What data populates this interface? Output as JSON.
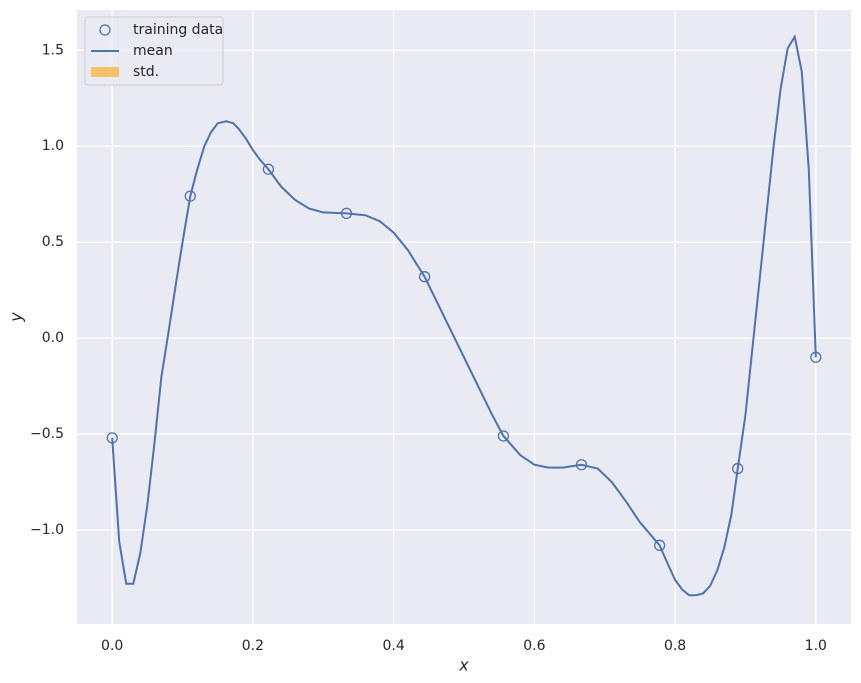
{
  "chart_data": {
    "type": "line",
    "xlabel": "x",
    "ylabel": "y",
    "xlim": [
      -0.05,
      1.05
    ],
    "ylim": [
      -1.49,
      1.71
    ],
    "xticks": [
      {
        "value": 0,
        "label": "0.0"
      },
      {
        "value": 0.2,
        "label": "0.2"
      },
      {
        "value": 0.4,
        "label": "0.4"
      },
      {
        "value": 0.6,
        "label": "0.6"
      },
      {
        "value": 0.8,
        "label": "0.8"
      },
      {
        "value": 1,
        "label": "1.0"
      }
    ],
    "yticks": [
      {
        "value": -1,
        "label": "−1.0"
      },
      {
        "value": -0.5,
        "label": "−0.5"
      },
      {
        "value": 0,
        "label": "0.0"
      },
      {
        "value": 0.5,
        "label": "0.5"
      },
      {
        "value": 1,
        "label": "1.0"
      },
      {
        "value": 1.5,
        "label": "1.5"
      }
    ],
    "grid": true,
    "legend": "upper left",
    "series": [
      {
        "name": "training data",
        "type": "scatter",
        "color": "#4c72b0",
        "x": [
          0,
          0.111,
          0.222,
          0.333,
          0.444,
          0.556,
          0.667,
          0.778,
          0.889,
          1.0
        ],
        "values": [
          -0.52,
          0.74,
          0.88,
          0.65,
          0.32,
          -0.51,
          -0.66,
          -1.08,
          -0.68,
          -0.1
        ]
      },
      {
        "name": "mean",
        "type": "line",
        "color": "#4c72b0",
        "x": [
          0,
          0.01,
          0.02,
          0.03,
          0.04,
          0.05,
          0.06,
          0.07,
          0.08,
          0.09,
          0.1,
          0.111,
          0.121,
          0.131,
          0.14,
          0.15,
          0.162,
          0.172,
          0.18,
          0.19,
          0.2,
          0.21,
          0.222,
          0.24,
          0.26,
          0.28,
          0.3,
          0.333,
          0.36,
          0.38,
          0.4,
          0.42,
          0.444,
          0.46,
          0.48,
          0.5,
          0.52,
          0.54,
          0.556,
          0.58,
          0.6,
          0.62,
          0.64,
          0.667,
          0.69,
          0.71,
          0.73,
          0.75,
          0.778,
          0.79,
          0.8,
          0.81,
          0.82,
          0.83,
          0.84,
          0.85,
          0.86,
          0.87,
          0.88,
          0.889,
          0.9,
          0.91,
          0.92,
          0.93,
          0.94,
          0.95,
          0.96,
          0.97,
          0.98,
          0.99,
          1.0
        ],
        "values": [
          -0.52,
          -1.06,
          -1.28,
          -1.28,
          -1.12,
          -0.87,
          -0.55,
          -0.2,
          0.03,
          0.27,
          0.5,
          0.74,
          0.88,
          1.0,
          1.07,
          1.12,
          1.13,
          1.12,
          1.09,
          1.04,
          0.98,
          0.93,
          0.88,
          0.79,
          0.72,
          0.675,
          0.655,
          0.65,
          0.64,
          0.61,
          0.55,
          0.46,
          0.32,
          0.2,
          0.05,
          -0.1,
          -0.25,
          -0.4,
          -0.51,
          -0.61,
          -0.66,
          -0.675,
          -0.675,
          -0.66,
          -0.68,
          -0.75,
          -0.85,
          -0.96,
          -1.08,
          -1.18,
          -1.26,
          -1.31,
          -1.34,
          -1.34,
          -1.33,
          -1.29,
          -1.21,
          -1.09,
          -0.92,
          -0.68,
          -0.4,
          -0.05,
          0.3,
          0.65,
          1.0,
          1.3,
          1.51,
          1.57,
          1.39,
          0.88,
          -0.1
        ]
      },
      {
        "name": "std.",
        "type": "area",
        "color": "#f5b942"
      }
    ]
  }
}
